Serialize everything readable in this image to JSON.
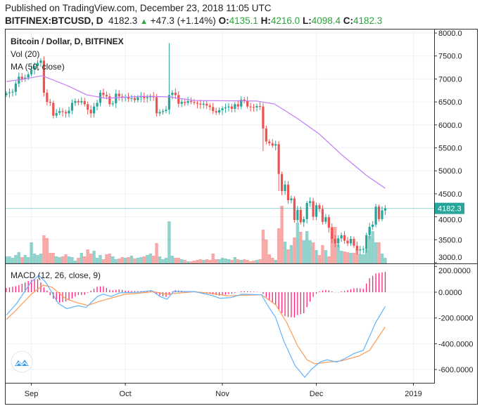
{
  "header": {
    "published": "Published on TradingView.com, December 23, 2018 11:05 UTC",
    "symbol": "BITFINEX:BTCUSD, D",
    "last": "4182.3",
    "change": "+47.3 (+1.14%)",
    "o_label": "O:",
    "o": "4135.1",
    "h_label": "H:",
    "h": "4216.0",
    "l_label": "L:",
    "l": "4098.4",
    "c_label": "C:",
    "c": "4182.3"
  },
  "legend": {
    "title": "Bitcoin / Dollar, D, BITFINEX",
    "vol": "Vol (20)",
    "ma": "MA (50, close)",
    "macd": "MACD (12, 26, close, 9)"
  },
  "colors": {
    "up": "#26a69a",
    "down": "#ef5350",
    "ma": "#c27cf7",
    "macd": "#5fb4ff",
    "signal": "#ff9a52",
    "hist": "#ff1e78",
    "last": "#26a69a"
  },
  "chart_data": [
    {
      "type": "candlestick",
      "title": "Bitcoin / Dollar, D, BITFINEX",
      "first_date": "2018-08-24",
      "x_ticks": [
        {
          "label": "Sep",
          "day": 8
        },
        {
          "label": "Oct",
          "day": 38
        },
        {
          "label": "Nov",
          "day": 69
        },
        {
          "label": "Dec",
          "day": 99
        },
        {
          "label": "2019",
          "day": 130
        }
      ],
      "y_ticks": [
        "8000.0",
        "7500.0",
        "7000.0",
        "6500.0",
        "6000.0",
        "5500.0",
        "5000.0",
        "4500.0",
        "4000.0",
        "3500.0",
        "3000.0"
      ],
      "ylim": [
        3000,
        8000
      ],
      "last_price_label": "4182.3",
      "close": [
        6690,
        6710,
        6720,
        6900,
        7050,
        7000,
        7030,
        7100,
        7200,
        7280,
        7350,
        7400,
        6700,
        6500,
        6480,
        6200,
        6260,
        6300,
        6280,
        6250,
        6310,
        6480,
        6520,
        6490,
        6520,
        6450,
        6330,
        6250,
        6400,
        6480,
        6700,
        6650,
        6620,
        6450,
        6470,
        6680,
        6620,
        6590,
        6610,
        6570,
        6580,
        6540,
        6600,
        6630,
        6580,
        6600,
        6630,
        6600,
        6250,
        6280,
        6300,
        6330,
        6650,
        6700,
        6650,
        6460,
        6500,
        6480,
        6520,
        6500,
        6480,
        6460,
        6440,
        6460,
        6420,
        6390,
        6300,
        6270,
        6320,
        6360,
        6380,
        6400,
        6350,
        6450,
        6400,
        6550,
        6520,
        6400,
        6390,
        6380,
        6410,
        6400,
        5920,
        5640,
        5600,
        5550,
        5580,
        4930,
        4560,
        4700,
        4360,
        4400,
        3930,
        4150,
        3880,
        3950,
        4300,
        4340,
        4000,
        4250,
        4170,
        3890,
        3990,
        3760,
        3520,
        3420,
        3530,
        3600,
        3480,
        3420,
        3520,
        3370,
        3270,
        3290,
        3300,
        3600,
        3780,
        3830,
        4220,
        3950,
        4140,
        4182.3
      ],
      "first_open": 6650,
      "notable_wicks": [
        {
          "day": 52,
          "high": 7780
        },
        {
          "day": 82,
          "low": 5430
        },
        {
          "day": 87,
          "low": 4560
        }
      ],
      "volume_relative": [
        10,
        10,
        8,
        12,
        16,
        9,
        12,
        9,
        30,
        14,
        12,
        14,
        40,
        36,
        15,
        15,
        10,
        9,
        10,
        13,
        10,
        9,
        4,
        8,
        15,
        10,
        20,
        14,
        18,
        8,
        12,
        6,
        13,
        14,
        10,
        6,
        7,
        9,
        8,
        9,
        11,
        7,
        8,
        9,
        10,
        12,
        14,
        11,
        29,
        10,
        6,
        8,
        60,
        11,
        8,
        8,
        6,
        5,
        3,
        3,
        4,
        5,
        6,
        5,
        6,
        5,
        14,
        6,
        6,
        8,
        7,
        6,
        5,
        9,
        6,
        5,
        6,
        5,
        3,
        4,
        5,
        6,
        48,
        34,
        13,
        8,
        5,
        50,
        82,
        31,
        20,
        26,
        37,
        58,
        45,
        33,
        46,
        33,
        30,
        19,
        12,
        26,
        19,
        10,
        52,
        52,
        27,
        18,
        17,
        16,
        15,
        15,
        20,
        13,
        13,
        20,
        39,
        46,
        30,
        30,
        14,
        8
      ],
      "ma50_points": [
        [
          0,
          6945
        ],
        [
          5,
          6990
        ],
        [
          11.5,
          7070
        ],
        [
          20,
          6840
        ],
        [
          25.6,
          6655
        ],
        [
          31.7,
          6580
        ],
        [
          43,
          6620
        ],
        [
          52,
          6610
        ],
        [
          60,
          6530
        ],
        [
          80,
          6520
        ],
        [
          85.6,
          6455
        ],
        [
          92.4,
          6165
        ],
        [
          99.8,
          5810
        ],
        [
          107,
          5355
        ],
        [
          115,
          4900
        ],
        [
          121,
          4620
        ]
      ]
    },
    {
      "type": "line",
      "title": "MACD (12, 26, close, 9)",
      "y_ticks": [
        "200.0000",
        "0.0000",
        "-200.0000",
        "-400.0000",
        "-600.0000"
      ],
      "macd_points": [
        [
          0,
          -178
        ],
        [
          3.3,
          -87
        ],
        [
          7.8,
          76
        ],
        [
          10.4,
          131
        ],
        [
          12.6,
          76
        ],
        [
          14.4,
          4
        ],
        [
          16.6,
          -87
        ],
        [
          19.3,
          -127
        ],
        [
          22.9,
          -105
        ],
        [
          25.5,
          -118
        ],
        [
          29.1,
          -33
        ],
        [
          30.9,
          -15
        ],
        [
          33.5,
          -33
        ],
        [
          36.2,
          -5
        ],
        [
          42.4,
          0
        ],
        [
          46.4,
          13
        ],
        [
          49.1,
          -33
        ],
        [
          51.3,
          -55
        ],
        [
          53.5,
          7
        ],
        [
          60.2,
          4
        ],
        [
          65.5,
          -24
        ],
        [
          68.2,
          -47
        ],
        [
          71.7,
          -42
        ],
        [
          75.3,
          -15
        ],
        [
          81.5,
          -20
        ],
        [
          83.3,
          -96
        ],
        [
          86,
          -196
        ],
        [
          88.6,
          -378
        ],
        [
          92.2,
          -569
        ],
        [
          95.3,
          -660
        ],
        [
          97.5,
          -596
        ],
        [
          100.2,
          -542
        ],
        [
          102.4,
          -524
        ],
        [
          105.5,
          -542
        ],
        [
          108.2,
          -515
        ],
        [
          110.8,
          -478
        ],
        [
          114,
          -451
        ],
        [
          118,
          -233
        ],
        [
          121,
          -111
        ]
      ],
      "signal_points": [
        [
          0,
          -211
        ],
        [
          3,
          -142
        ],
        [
          8,
          -15
        ],
        [
          11.8,
          55
        ],
        [
          14.5,
          40
        ],
        [
          19,
          -51
        ],
        [
          23,
          -84
        ],
        [
          26,
          -102
        ],
        [
          30,
          -69
        ],
        [
          34,
          -42
        ],
        [
          38,
          -15
        ],
        [
          42,
          -9
        ],
        [
          47,
          4
        ],
        [
          51,
          -15
        ],
        [
          56,
          -5
        ],
        [
          60,
          4
        ],
        [
          66,
          -11
        ],
        [
          71,
          -29
        ],
        [
          75,
          -24
        ],
        [
          81.5,
          -20
        ],
        [
          86,
          -96
        ],
        [
          89.5,
          -233
        ],
        [
          93,
          -415
        ],
        [
          96,
          -524
        ],
        [
          98.5,
          -556
        ],
        [
          103,
          -542
        ],
        [
          107,
          -533
        ],
        [
          112.5,
          -496
        ],
        [
          116,
          -451
        ],
        [
          121,
          -269
        ]
      ],
      "histogram": "macd - signal"
    }
  ]
}
